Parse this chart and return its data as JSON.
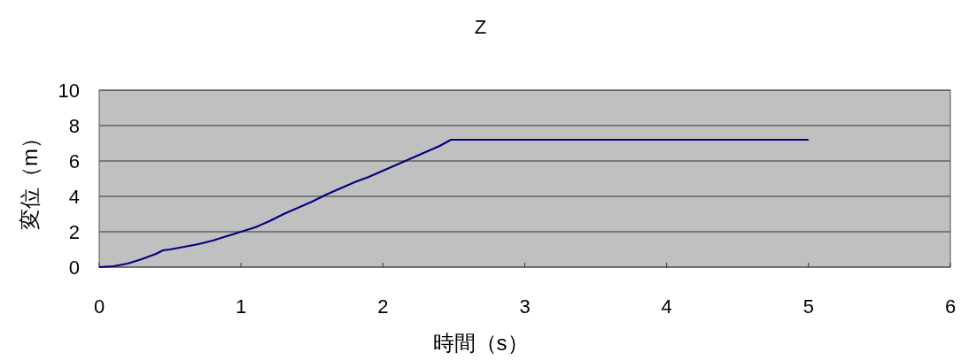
{
  "chart_data": {
    "type": "line",
    "title": "Z",
    "xlabel": "時間（s）",
    "ylabel": "変位（m）",
    "x": [
      0,
      0.1,
      0.2,
      0.3,
      0.4,
      0.45,
      0.5,
      0.6,
      0.7,
      0.8,
      0.9,
      1.0,
      1.1,
      1.2,
      1.3,
      1.4,
      1.5,
      1.6,
      1.7,
      1.8,
      1.9,
      2.0,
      2.1,
      2.2,
      2.3,
      2.4,
      2.48,
      5.0
    ],
    "series": [
      {
        "color": "#000080",
        "values": [
          0,
          0.05,
          0.2,
          0.45,
          0.75,
          0.95,
          1.0,
          1.15,
          1.3,
          1.5,
          1.75,
          2.0,
          2.25,
          2.6,
          3.0,
          3.35,
          3.7,
          4.1,
          4.45,
          4.8,
          5.1,
          5.45,
          5.8,
          6.15,
          6.5,
          6.85,
          7.2,
          7.2
        ]
      }
    ],
    "xlim": [
      0,
      6
    ],
    "ylim": [
      0,
      10
    ],
    "xticks": [
      0,
      1,
      2,
      3,
      4,
      5,
      6
    ],
    "yticks": [
      0,
      2,
      4,
      6,
      8,
      10
    ],
    "grid": "y",
    "marker": "none",
    "line_style": "solid"
  }
}
